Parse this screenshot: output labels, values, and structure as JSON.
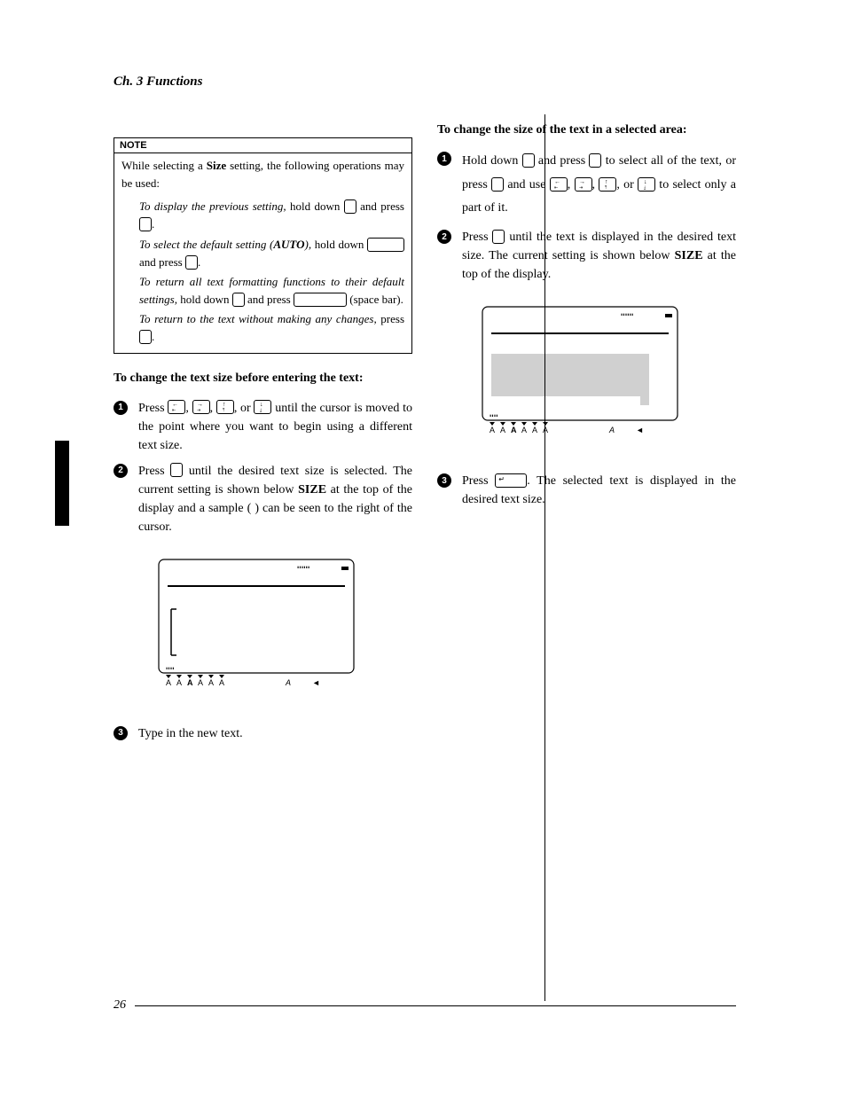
{
  "chapter_title": "Ch. 3 Functions",
  "page_number": "26",
  "note": {
    "header": "NOTE",
    "intro_1": "While selecting a ",
    "intro_bold": "Size",
    "intro_2": " setting, the following operations may be used:",
    "item1_a": "To display the previous setting,",
    "item1_b": " hold down ",
    "item1_c": " and press ",
    "item2_a": "To select the default setting (",
    "item2_bold": "AUTO",
    "item2_b": "),",
    "item2_c": " hold down ",
    "item2_d": " and press ",
    "item3_a": "To return all text formatting functions to their default settings,",
    "item3_b": " hold down ",
    "item3_c": " and press ",
    "item3_d": " (space bar).",
    "item4_a": "To return to the text without making any changes,",
    "item4_b": " press "
  },
  "left": {
    "heading": "To change the text size before entering the text:",
    "step1_a": "Press ",
    "step1_b": ", ",
    "step1_c": ", ",
    "step1_d": ", or ",
    "step1_e": " until the cursor is moved to the point where you want to begin using a different text size.",
    "step2_a": "Press ",
    "step2_b": " until the desired text size is selected. The current setting is shown below ",
    "step2_bold": "SIZE",
    "step2_c": " at the top of the display and a sample (  ) can be seen to the right of the cursor.",
    "step3": "Type in the new text."
  },
  "right": {
    "heading": "To change the size of the text in a selected area:",
    "step1_a": "Hold down ",
    "step1_b": " and press ",
    "step1_c": " to select all of the text, or press ",
    "step1_d": " and use ",
    "step1_e": ", ",
    "step1_f": ", ",
    "step1_g": ", or ",
    "step1_h": " to select only a part of it.",
    "step2_a": "Press ",
    "step2_b": " until the text is displayed in the desired text size. The current setting is shown below ",
    "step2_bold": "SIZE",
    "step2_c": " at the top of the display.",
    "step3_a": "Press ",
    "step3_b": ". The selected text is displayed in the desired text size."
  },
  "display": {
    "indicators_x": [
      10,
      22,
      34,
      46,
      58,
      70,
      145,
      175
    ],
    "indicator_glyphs": [
      "A",
      "A",
      "A",
      "A",
      "A",
      "A",
      "A",
      "◄"
    ],
    "indicator_bold_idx": 2
  },
  "colors": {
    "text": "#000000",
    "bg": "#ffffff",
    "shade": "#d0d0d0"
  }
}
